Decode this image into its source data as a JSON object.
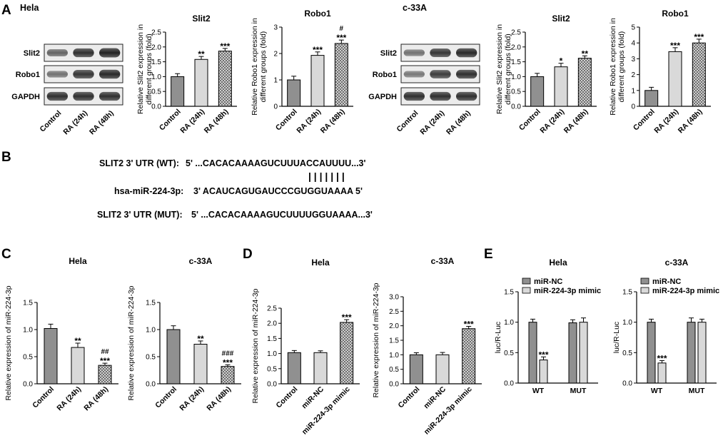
{
  "panels": {
    "A": "A",
    "B": "B",
    "C": "C",
    "D": "D",
    "E": "E"
  },
  "blots": [
    {
      "cell": "Hela",
      "rows": [
        "Slit2",
        "Robo1",
        "GAPDH"
      ],
      "lanes": [
        "Control",
        "RA (24h)",
        "RA (48h)"
      ]
    },
    {
      "cell": "c-33A",
      "rows": [
        "Slit2",
        "Robo1",
        "GAPDH"
      ],
      "lanes": [
        "Control",
        "RA (24h)",
        "RA (48h)"
      ]
    }
  ],
  "sequence": {
    "wt_label": "SLIT2 3' UTR (WT):",
    "wt_seq": "5'  ...CACACAAAAGUCUUUACCAUUUU...3'",
    "pairs": "| | | | | | |",
    "mir_label": "hsa-miR-224-3p:",
    "mir_seq": "3'  ACAUCAGUGAUCCCGUGGUAAAA  5'",
    "mut_label": "SLIT2 3' UTR (MUT):",
    "mut_seq": "5'  ...CACACAAAAGUCUUUUGGUAAAA...3'"
  },
  "chart_data": [
    {
      "id": "A-hela-slit2",
      "type": "bar",
      "title": "Slit2",
      "ylabel": "Relative Slit2 expression in different groups (fold)",
      "categories": [
        "Control",
        "RA (24h)",
        "RA (48h)"
      ],
      "values": [
        1.0,
        1.58,
        1.86
      ],
      "errors": [
        0.1,
        0.1,
        0.09
      ],
      "annotations": [
        [],
        [
          "**"
        ],
        [
          "***"
        ]
      ],
      "ylim": [
        0,
        2.5
      ],
      "yticks": [
        0,
        0.5,
        1.0,
        1.5,
        2.0,
        2.5
      ],
      "tick_labels": [
        "0.0",
        "0.5",
        "1.0",
        "1.5",
        "2.0",
        "2.5"
      ]
    },
    {
      "id": "A-hela-robo1",
      "type": "bar",
      "title": "Robo1",
      "ylabel": "Relative Robo1 expression in different groups (fold)",
      "categories": [
        "Control",
        "RA (24h)",
        "RA (48h)"
      ],
      "values": [
        1.0,
        1.93,
        2.38
      ],
      "errors": [
        0.14,
        0.13,
        0.13
      ],
      "annotations": [
        [],
        [
          "***"
        ],
        [
          "***",
          "#"
        ]
      ],
      "ylim": [
        0,
        3
      ],
      "yticks": [
        0,
        1,
        2,
        3
      ],
      "tick_labels": [
        "0",
        "1",
        "2",
        "3"
      ]
    },
    {
      "id": "A-c33a-slit2",
      "type": "bar",
      "title": "Slit2",
      "ylabel": "Relative Slit2 expression in different groups (fold)",
      "categories": [
        "Control",
        "RA (24h)",
        "RA (48h)"
      ],
      "values": [
        1.0,
        1.33,
        1.62
      ],
      "errors": [
        0.11,
        0.12,
        0.08
      ],
      "annotations": [
        [],
        [
          "*"
        ],
        [
          "**"
        ]
      ],
      "ylim": [
        0,
        2.5
      ],
      "yticks": [
        0,
        0.5,
        1.0,
        1.5,
        2.0,
        2.5
      ],
      "tick_labels": [
        "0.0",
        "0.5",
        "1.0",
        "1.5",
        "2.0",
        "2.5"
      ]
    },
    {
      "id": "A-c33a-robo1",
      "type": "bar",
      "title": "Robo1",
      "ylabel": "Relative Robo1 expression in different groups (fold)",
      "categories": [
        "Control",
        "RA (24h)",
        "RA (48h)"
      ],
      "values": [
        1.0,
        3.45,
        4.0
      ],
      "errors": [
        0.2,
        0.25,
        0.24
      ],
      "annotations": [
        [],
        [
          "***"
        ],
        [
          "***"
        ]
      ],
      "ylim": [
        0,
        5
      ],
      "yticks": [
        0,
        1,
        2,
        3,
        4,
        5
      ],
      "tick_labels": [
        "0",
        "1",
        "2",
        "3",
        "4",
        "5"
      ]
    },
    {
      "id": "C-hela",
      "type": "bar",
      "title": "Hela",
      "ylabel": "Relative expression of miR-224-3p",
      "categories": [
        "Control",
        "RA (24h)",
        "RA (48h)"
      ],
      "values": [
        1.02,
        0.67,
        0.34
      ],
      "errors": [
        0.08,
        0.08,
        0.04
      ],
      "annotations": [
        [],
        [
          "**"
        ],
        [
          "***",
          "##"
        ]
      ],
      "ylim": [
        0,
        1.5
      ],
      "yticks": [
        0,
        0.5,
        1.0,
        1.5
      ],
      "tick_labels": [
        "0.0",
        "0.5",
        "1.0",
        "1.5"
      ]
    },
    {
      "id": "C-c33a",
      "type": "bar",
      "title": "c-33A",
      "ylabel": "Relative expression of miR-224-3p",
      "categories": [
        "Control",
        "RA (24h)",
        "RA (48h)"
      ],
      "values": [
        1.0,
        0.73,
        0.32
      ],
      "errors": [
        0.07,
        0.06,
        0.03
      ],
      "annotations": [
        [],
        [
          "**"
        ],
        [
          "***",
          "###"
        ]
      ],
      "ylim": [
        0,
        1.5
      ],
      "yticks": [
        0,
        0.5,
        1.0,
        1.5
      ],
      "tick_labels": [
        "0.0",
        "0.5",
        "1.0",
        "1.5"
      ]
    },
    {
      "id": "D-hela",
      "type": "bar",
      "title": "Hela",
      "ylabel": "Relative expression of miR-224-3p",
      "categories": [
        "Control",
        "miR-NC",
        "miR-224-3p mimic"
      ],
      "values": [
        1.03,
        1.03,
        2.03
      ],
      "errors": [
        0.07,
        0.06,
        0.09
      ],
      "annotations": [
        [],
        [],
        [
          "***"
        ]
      ],
      "ylim": [
        0,
        2.5
      ],
      "yticks": [
        0,
        0.5,
        1.0,
        1.5,
        2.0,
        2.5
      ],
      "tick_labels": [
        "0.0",
        "0.5",
        "1.0",
        "1.5",
        "2.0",
        "2.5"
      ]
    },
    {
      "id": "D-c33a",
      "type": "bar",
      "title": "c-33A",
      "ylabel": "Relative expression of miR-224-3p",
      "categories": [
        "Control",
        "miR-NC",
        "miR-224-3p mimic"
      ],
      "values": [
        1.0,
        1.0,
        1.9
      ],
      "errors": [
        0.07,
        0.08,
        0.08
      ],
      "annotations": [
        [],
        [],
        [
          "***"
        ]
      ],
      "ylim": [
        0,
        3.0
      ],
      "yticks": [
        0,
        0.5,
        1.0,
        1.5,
        2.0,
        2.5,
        3.0
      ],
      "tick_labels": [
        "0.0",
        "0.5",
        "1.0",
        "1.5",
        "2.0",
        "2.5",
        "3.0"
      ]
    },
    {
      "id": "E-hela",
      "type": "bar",
      "title": "Hela",
      "ylabel": "luc/R-Luc",
      "categories": [
        "WT",
        "MUT"
      ],
      "series": [
        {
          "name": "miR-NC",
          "values": [
            1.0,
            0.99
          ],
          "errors": [
            0.05,
            0.05
          ]
        },
        {
          "name": "miR-224-3p mimic",
          "values": [
            0.38,
            1.0
          ],
          "errors": [
            0.05,
            0.07
          ]
        }
      ],
      "annotations": [
        [
          [],
          [
            "***"
          ]
        ],
        [
          [],
          []
        ]
      ],
      "ylim": [
        0,
        1.5
      ],
      "yticks": [
        0,
        0.5,
        1.0,
        1.5
      ],
      "tick_labels": [
        "0.0",
        "0.5",
        "1.0",
        "1.5"
      ]
    },
    {
      "id": "E-c33a",
      "type": "bar",
      "title": "c-33A",
      "ylabel": "luc/R-Luc",
      "categories": [
        "WT",
        "MUT"
      ],
      "series": [
        {
          "name": "miR-NC",
          "values": [
            1.0,
            1.0
          ],
          "errors": [
            0.05,
            0.07
          ]
        },
        {
          "name": "miR-224-3p mimic",
          "values": [
            0.33,
            1.0
          ],
          "errors": [
            0.04,
            0.05
          ]
        }
      ],
      "annotations": [
        [
          [],
          [
            "***"
          ]
        ],
        [
          [],
          []
        ]
      ],
      "ylim": [
        0,
        1.5
      ],
      "yticks": [
        0,
        0.5,
        1.0,
        1.5
      ],
      "tick_labels": [
        "0.0",
        "0.5",
        "1.0",
        "1.5"
      ]
    }
  ]
}
